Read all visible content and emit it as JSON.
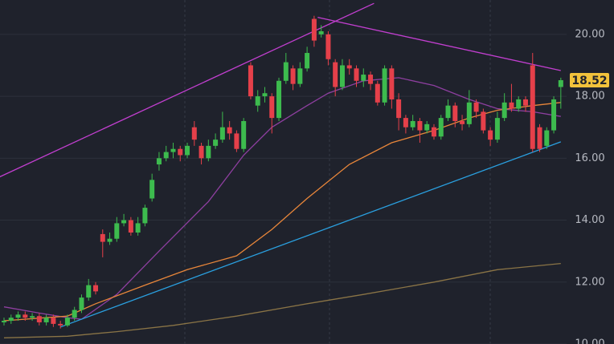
{
  "chart_data": {
    "type": "candlestick",
    "open": [
      10.7,
      10.75,
      10.85,
      10.95,
      10.85,
      10.9,
      10.7,
      10.85,
      10.65,
      10.6,
      10.85,
      11.1,
      11.5,
      11.9,
      13.55,
      13.3,
      13.4,
      13.9,
      14.0,
      13.6,
      13.9,
      14.7,
      15.8,
      16.0,
      16.2,
      16.3,
      16.1,
      17.0,
      16.4,
      16.0,
      16.4,
      16.6,
      17.0,
      16.8,
      16.3,
      19.0,
      17.7,
      18.0,
      18.0,
      17.3,
      18.5,
      18.9,
      18.4,
      18.9,
      20.5,
      20.0,
      20.0,
      19.1,
      18.3,
      19.0,
      18.9,
      18.5,
      18.7,
      18.4,
      17.8,
      18.9,
      17.9,
      17.3,
      17.0,
      17.2,
      16.9,
      17.0,
      16.7,
      17.3,
      17.7,
      17.2,
      17.1,
      17.8,
      17.5,
      16.9,
      16.6,
      17.3,
      17.8,
      17.6,
      17.9,
      19.0,
      17.0,
      16.4,
      16.9,
      18.3
    ],
    "high": [
      10.85,
      10.95,
      11.05,
      11.05,
      11.0,
      11.0,
      10.95,
      10.95,
      10.75,
      10.95,
      11.2,
      11.6,
      12.1,
      12.0,
      13.7,
      13.6,
      14.1,
      14.2,
      14.1,
      14.1,
      14.5,
      15.5,
      16.2,
      16.4,
      16.5,
      16.4,
      16.5,
      17.2,
      16.5,
      16.6,
      16.8,
      17.5,
      17.2,
      16.9,
      17.3,
      19.1,
      18.2,
      18.3,
      18.1,
      18.6,
      19.4,
      19.0,
      19.1,
      19.6,
      20.6,
      20.3,
      20.1,
      19.2,
      19.2,
      19.2,
      19.0,
      18.9,
      18.8,
      18.5,
      19.0,
      19.0,
      18.1,
      17.4,
      17.4,
      17.3,
      17.2,
      17.1,
      17.4,
      17.9,
      17.8,
      17.4,
      18.2,
      17.9,
      17.6,
      17.0,
      17.5,
      18.1,
      18.4,
      18.0,
      18.0,
      19.4,
      17.1,
      17.0,
      18.0,
      18.6
    ],
    "low": [
      10.6,
      10.65,
      10.75,
      10.75,
      10.75,
      10.6,
      10.6,
      10.55,
      10.5,
      10.55,
      10.75,
      11.0,
      11.4,
      11.6,
      12.8,
      13.2,
      13.3,
      13.8,
      13.5,
      13.5,
      13.8,
      14.6,
      15.6,
      15.9,
      16.0,
      15.9,
      16.0,
      16.4,
      15.8,
      15.9,
      16.3,
      16.5,
      16.6,
      16.2,
      16.2,
      17.9,
      17.5,
      17.8,
      16.8,
      17.2,
      18.4,
      18.2,
      18.3,
      18.8,
      19.6,
      19.9,
      19.0,
      18.0,
      18.2,
      18.7,
      18.3,
      18.3,
      18.2,
      17.7,
      17.7,
      17.6,
      16.9,
      16.8,
      16.9,
      16.5,
      16.8,
      16.6,
      16.6,
      17.2,
      17.0,
      16.9,
      17.0,
      17.3,
      16.8,
      16.4,
      16.5,
      17.2,
      17.5,
      17.5,
      17.5,
      16.2,
      16.2,
      16.3,
      16.8,
      17.6
    ],
    "close": [
      10.75,
      10.85,
      10.95,
      10.85,
      10.9,
      10.7,
      10.85,
      10.65,
      10.6,
      10.85,
      11.1,
      11.5,
      11.9,
      11.7,
      13.3,
      13.4,
      13.9,
      14.0,
      13.6,
      13.9,
      14.4,
      15.3,
      16.0,
      16.2,
      16.3,
      16.1,
      16.4,
      16.6,
      16.0,
      16.4,
      16.6,
      17.0,
      16.8,
      16.3,
      17.2,
      18.0,
      18.0,
      18.1,
      17.3,
      18.5,
      19.1,
      18.4,
      18.9,
      19.4,
      19.8,
      20.1,
      19.2,
      18.3,
      19.0,
      18.9,
      18.5,
      18.7,
      18.4,
      17.8,
      18.9,
      17.9,
      17.3,
      17.0,
      17.2,
      16.9,
      17.1,
      16.7,
      17.3,
      17.7,
      17.2,
      17.1,
      17.8,
      17.5,
      16.9,
      16.6,
      17.3,
      17.8,
      17.6,
      17.9,
      17.7,
      16.3,
      16.3,
      16.9,
      17.9,
      18.52
    ],
    "up_color": "#3dbb4e",
    "down_color": "#e5404a",
    "ylim": [
      10,
      21.11
    ],
    "yticks": [
      {
        "value": 10,
        "label": "10.00"
      },
      {
        "value": 12,
        "label": "12.00"
      },
      {
        "value": 14,
        "label": "14.00"
      },
      {
        "value": 16,
        "label": "16.00"
      },
      {
        "value": 18,
        "label": "18.00"
      },
      {
        "value": 20,
        "label": "20.00"
      }
    ],
    "grid": true,
    "overlays": [
      {
        "color": "#8e3fa0",
        "x": [
          0,
          5,
          9,
          11,
          16,
          22,
          29,
          34,
          38,
          43,
          46,
          51,
          56,
          61,
          66,
          70,
          75,
          79
        ],
        "values": [
          11.2,
          11.0,
          10.85,
          10.8,
          11.6,
          13.0,
          14.6,
          16.1,
          17.0,
          17.7,
          18.1,
          18.5,
          18.6,
          18.35,
          17.9,
          17.6,
          17.5,
          17.35
        ]
      },
      {
        "color": "#e8863a",
        "x": [
          0,
          9,
          13,
          20,
          26,
          33,
          38,
          43,
          49,
          55,
          61,
          66,
          70,
          75,
          79
        ],
        "values": [
          10.75,
          10.9,
          11.3,
          11.9,
          12.4,
          12.85,
          13.7,
          14.7,
          15.8,
          16.5,
          16.9,
          17.3,
          17.55,
          17.7,
          17.8
        ]
      },
      {
        "color": "#8a7446",
        "x": [
          0,
          9,
          16,
          24,
          33,
          43,
          51,
          61,
          70,
          79
        ],
        "values": [
          10.2,
          10.25,
          10.4,
          10.6,
          10.9,
          11.3,
          11.6,
          12.0,
          12.4,
          12.6
        ]
      },
      {
        "color": "#c23fd0",
        "x": [
          -0.6,
          52.5
        ],
        "values": [
          15.4,
          21.0
        ]
      },
      {
        "color": "#c23fd0",
        "x": [
          44.5,
          79
        ],
        "values": [
          20.55,
          18.83
        ]
      },
      {
        "color": "#2aa0e0",
        "x": [
          8,
          79
        ],
        "values": [
          10.55,
          16.53
        ]
      }
    ]
  }
}
